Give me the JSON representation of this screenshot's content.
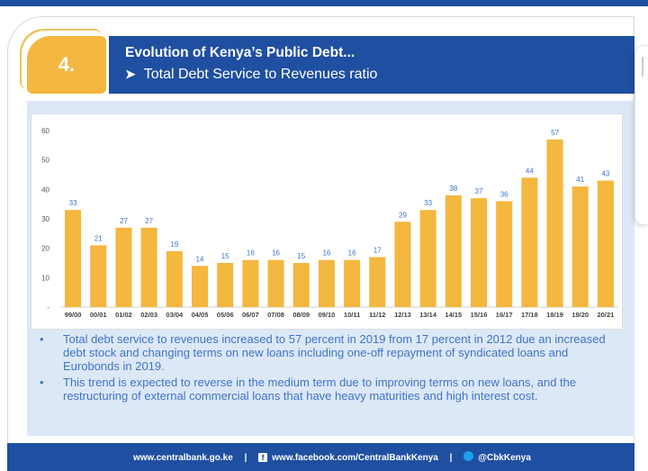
{
  "slide": {
    "number": "4.",
    "title": "Evolution of Kenya’s Public Debt...",
    "subtitle": "Total Debt Service to Revenues ratio",
    "subtitle_icon": "chevron-right-icon"
  },
  "chart_data": {
    "type": "bar",
    "title": "",
    "xlabel": "",
    "ylabel": "",
    "ylim": [
      0,
      60
    ],
    "yticks": [
      "-",
      "10",
      "20",
      "30",
      "40",
      "50",
      "60"
    ],
    "grid": false,
    "bar_color": "#f4b73f",
    "label_color": "#3e74c6",
    "categories": [
      "99/00",
      "00/01",
      "01/02",
      "02/03",
      "03/04",
      "04/05",
      "05/06",
      "06/07",
      "07/08",
      "08/09",
      "09/10",
      "10/11",
      "11/12",
      "12/13",
      "13/14",
      "14/15",
      "15/16",
      "16/17",
      "17/18",
      "18/19",
      "19/20",
      "20/21"
    ],
    "values": [
      33,
      21,
      27,
      27,
      19,
      14,
      15,
      16,
      16,
      15,
      16,
      16,
      17,
      29,
      33,
      38,
      37,
      36,
      44,
      57,
      41,
      43
    ]
  },
  "bullets": [
    "Total debt service to revenues increased to 57 percent in 2019 from 17 percent in 2012 due an increased debt stock and changing terms on new loans including one-off repayment of syndicated loans and Eurobonds in 2019.",
    "This trend is expected to reverse in the medium term due to improving terms on new loans, and the restructuring of external commercial loans that have heavy maturities and high interest cost."
  ],
  "footer": {
    "website": "www.centralbank.go.ke",
    "facebook": "www.facebook.com/CentralBankKenya",
    "twitter": "@CbkKenya",
    "separator": "|",
    "facebook_icon": "facebook-icon",
    "twitter_icon": "twitter-icon"
  },
  "colors": {
    "brand_blue": "#1f4fa0",
    "accent_gold": "#f4b73f",
    "panel_bg": "#dde8f6",
    "text_blue": "#3e74c6"
  }
}
